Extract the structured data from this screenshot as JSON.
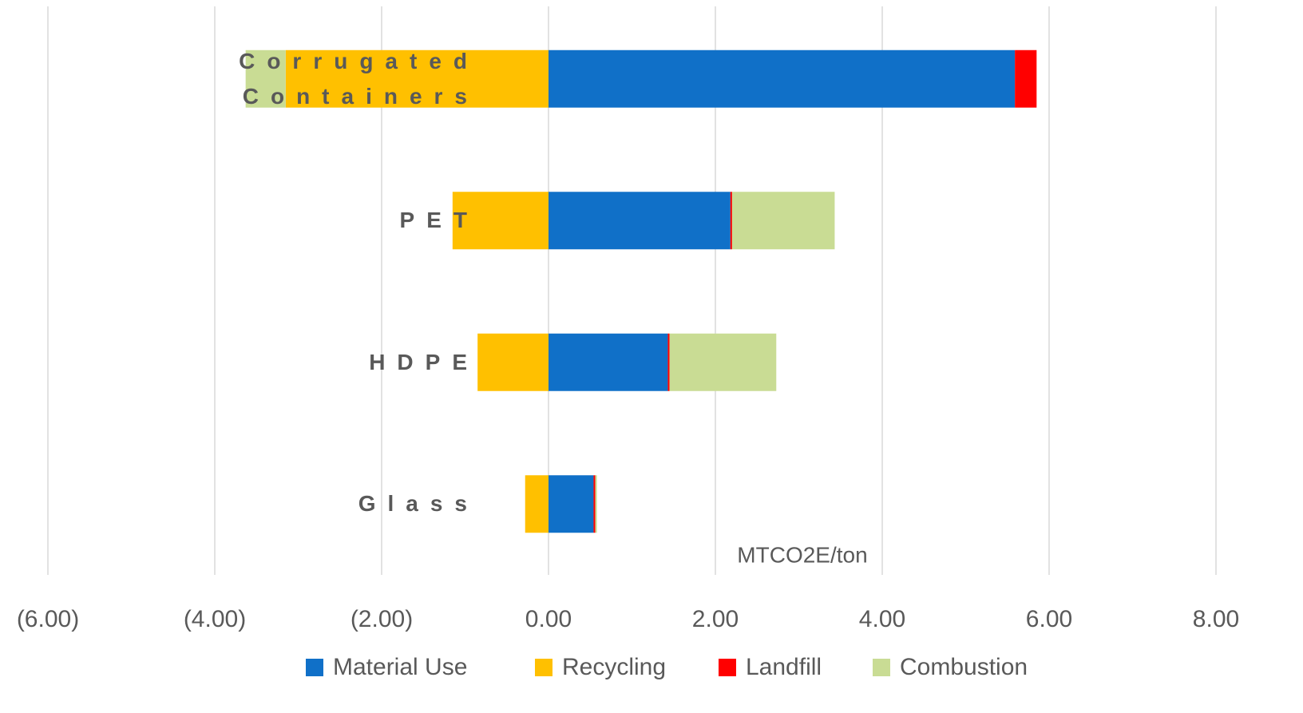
{
  "chart_data": {
    "type": "bar",
    "orientation": "horizontal",
    "stacked": true,
    "categories": [
      "Corrugated Containers",
      "PET",
      "HDPE",
      "Glass"
    ],
    "series": [
      {
        "name": "Material Use",
        "color": "#1070c8",
        "values": [
          5.59,
          2.18,
          1.43,
          0.54
        ]
      },
      {
        "name": "Recycling",
        "color": "#ffc000",
        "values": [
          -3.15,
          -1.15,
          -0.85,
          -0.28
        ]
      },
      {
        "name": "Landfill",
        "color": "#ff0000",
        "values": [
          0.26,
          0.02,
          0.02,
          0.02
        ]
      },
      {
        "name": "Combustion",
        "color": "#c9dc94",
        "values": [
          -0.48,
          1.23,
          1.28,
          0.02
        ]
      }
    ],
    "x_axis_label": "MTCO2E/ton",
    "xlim": [
      -6,
      8
    ],
    "xticks": [
      {
        "value": -6,
        "label": "(6.00)"
      },
      {
        "value": -4,
        "label": "(4.00)"
      },
      {
        "value": -2,
        "label": "(2.00)"
      },
      {
        "value": 0,
        "label": "0.00"
      },
      {
        "value": 2,
        "label": "2.00"
      },
      {
        "value": 4,
        "label": "4.00"
      },
      {
        "value": 6,
        "label": "6.00"
      },
      {
        "value": 8,
        "label": "8.00"
      }
    ],
    "grid": true,
    "legend": "bottom"
  }
}
